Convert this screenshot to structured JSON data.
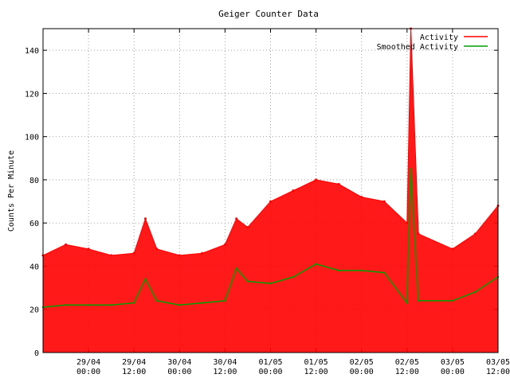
{
  "chart_data": {
    "type": "line",
    "title": "Geiger Counter Data",
    "xlabel": "",
    "ylabel": "Counts Per Minute",
    "ylim": [
      0,
      150
    ],
    "xlim": [
      "2012-04-28T12:00",
      "2012-05-03T12:00"
    ],
    "grid": true,
    "legend_position": "top-right",
    "y_ticks": [
      0,
      20,
      40,
      60,
      80,
      100,
      120,
      140
    ],
    "x_ticks": [
      {
        "at": "2012-04-29T00:00",
        "line1": "29/04",
        "line2": "00:00"
      },
      {
        "at": "2012-04-29T12:00",
        "line1": "29/04",
        "line2": "12:00"
      },
      {
        "at": "2012-04-30T00:00",
        "line1": "30/04",
        "line2": "00:00"
      },
      {
        "at": "2012-04-30T12:00",
        "line1": "30/04",
        "line2": "12:00"
      },
      {
        "at": "2012-05-01T00:00",
        "line1": "01/05",
        "line2": "00:00"
      },
      {
        "at": "2012-05-01T12:00",
        "line1": "01/05",
        "line2": "12:00"
      },
      {
        "at": "2012-05-02T00:00",
        "line1": "02/05",
        "line2": "00:00"
      },
      {
        "at": "2012-05-02T12:00",
        "line1": "02/05",
        "line2": "12:00"
      },
      {
        "at": "2012-05-03T00:00",
        "line1": "03/05",
        "line2": "00:00"
      },
      {
        "at": "2012-05-03T12:00",
        "line1": "03/05",
        "line2": "12:00"
      }
    ],
    "x": [
      "2012-04-28T12:00",
      "2012-04-28T18:00",
      "2012-04-29T00:00",
      "2012-04-29T06:00",
      "2012-04-29T12:00",
      "2012-04-29T15:00",
      "2012-04-29T18:00",
      "2012-04-30T00:00",
      "2012-04-30T06:00",
      "2012-04-30T12:00",
      "2012-04-30T15:00",
      "2012-04-30T18:00",
      "2012-05-01T00:00",
      "2012-05-01T06:00",
      "2012-05-01T12:00",
      "2012-05-01T18:00",
      "2012-05-02T00:00",
      "2012-05-02T06:00",
      "2012-05-02T12:00",
      "2012-05-02T13:00",
      "2012-05-02T15:00",
      "2012-05-03T00:00",
      "2012-05-03T06:00",
      "2012-05-03T12:00"
    ],
    "series": [
      {
        "name": "Activity",
        "color": "#ff0000",
        "values": [
          45,
          50,
          48,
          45,
          46,
          62,
          48,
          45,
          46,
          50,
          62,
          58,
          70,
          75,
          80,
          78,
          72,
          70,
          60,
          150,
          55,
          48,
          55,
          68
        ]
      },
      {
        "name": "Smoothed Activity",
        "color": "#00a000",
        "values": [
          21,
          22,
          22,
          22,
          23,
          34,
          24,
          22,
          23,
          24,
          39,
          33,
          32,
          35,
          41,
          38,
          38,
          37,
          23,
          85,
          24,
          24,
          28,
          35
        ]
      }
    ]
  }
}
